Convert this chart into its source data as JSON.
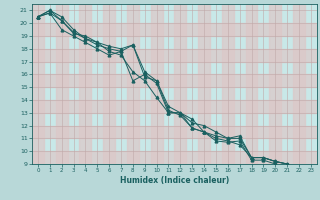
{
  "title": "",
  "xlabel": "Humidex (Indice chaleur)",
  "bg_color": "#b8d8d8",
  "plot_bg_color": "#c8e8e8",
  "grid_color_major": "#d8b8b8",
  "line_color": "#1a6060",
  "xlim": [
    -0.5,
    23.5
  ],
  "ylim": [
    9,
    21.5
  ],
  "xticks": [
    0,
    1,
    2,
    3,
    4,
    5,
    6,
    7,
    8,
    9,
    10,
    11,
    12,
    13,
    14,
    15,
    16,
    17,
    18,
    19,
    20,
    21,
    22,
    23
  ],
  "yticks": [
    9,
    10,
    11,
    12,
    13,
    14,
    15,
    16,
    17,
    18,
    19,
    20,
    21
  ],
  "lines": [
    {
      "x": [
        0,
        1,
        2,
        3,
        4,
        5,
        6,
        7,
        8,
        9,
        10,
        11,
        12,
        13,
        14,
        15,
        16,
        17,
        18,
        19,
        20,
        21,
        22,
        23
      ],
      "y": [
        20.5,
        21.0,
        20.5,
        19.5,
        18.8,
        18.3,
        18.0,
        17.8,
        15.5,
        16.0,
        15.3,
        13.0,
        13.0,
        12.2,
        12.0,
        11.5,
        11.0,
        11.2,
        9.5,
        9.5,
        9.2,
        9.0,
        8.8,
        8.8
      ]
    },
    {
      "x": [
        0,
        1,
        2,
        3,
        4,
        5,
        6,
        7,
        8,
        9,
        10,
        11,
        12,
        13,
        14,
        15,
        16,
        17,
        18,
        19,
        20,
        21,
        22,
        23
      ],
      "y": [
        20.5,
        20.8,
        19.5,
        19.0,
        18.5,
        18.0,
        17.5,
        17.8,
        18.3,
        15.8,
        15.5,
        13.2,
        12.8,
        11.8,
        11.5,
        10.8,
        10.7,
        10.8,
        9.3,
        9.3,
        9.0,
        8.8,
        8.8,
        8.8
      ]
    },
    {
      "x": [
        0,
        1,
        2,
        3,
        4,
        5,
        6,
        7,
        8,
        9,
        10,
        11,
        12,
        13,
        14,
        15,
        16,
        17,
        18,
        19,
        20,
        21,
        22,
        23
      ],
      "y": [
        20.5,
        20.8,
        20.2,
        19.3,
        18.8,
        18.5,
        17.8,
        17.5,
        16.2,
        15.5,
        14.2,
        13.0,
        13.0,
        12.5,
        11.5,
        11.0,
        10.8,
        10.5,
        9.5,
        9.5,
        9.2,
        9.0,
        8.8,
        8.8
      ]
    },
    {
      "x": [
        0,
        1,
        2,
        3,
        4,
        5,
        6,
        7,
        8,
        9,
        10,
        11,
        12,
        13,
        14,
        15,
        16,
        17,
        18,
        19,
        20,
        21,
        22,
        23
      ],
      "y": [
        20.5,
        21.0,
        20.2,
        19.2,
        19.0,
        18.5,
        18.2,
        18.0,
        18.3,
        16.2,
        15.5,
        13.5,
        13.0,
        11.8,
        11.5,
        11.2,
        11.0,
        11.0,
        9.5,
        9.5,
        9.2,
        9.0,
        8.8,
        8.8
      ]
    }
  ]
}
